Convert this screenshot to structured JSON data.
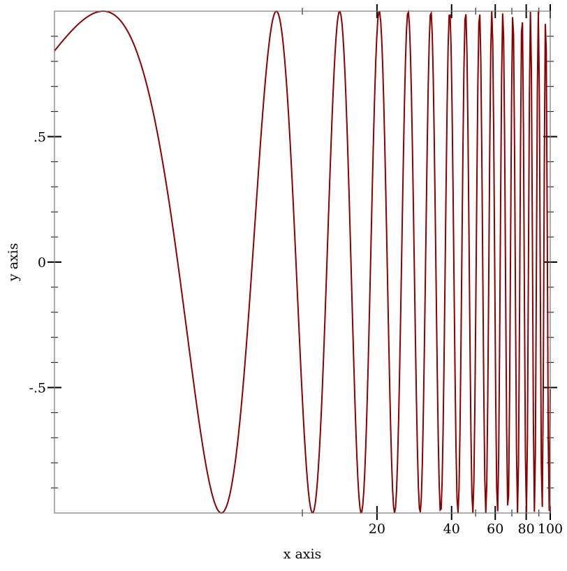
{
  "chart_data": {
    "type": "line",
    "function": "sin(x)",
    "xlabel": "x axis",
    "ylabel": "y axis",
    "xlim": [
      1,
      100
    ],
    "ylim": [
      -1,
      1
    ],
    "x_scale": "log",
    "x_major_ticks": [
      20,
      40,
      60,
      80,
      100
    ],
    "x_tick_labels": [
      "20",
      "40",
      "60",
      "80",
      "100"
    ],
    "x_minor_ticks": [
      10,
      50,
      70,
      90
    ],
    "y_major_ticks": [
      -0.5,
      0,
      0.5
    ],
    "y_tick_labels": [
      "-.5",
      "0",
      ".5"
    ],
    "y_minor_step": 0.1,
    "grid": false,
    "series": [
      {
        "color": "#8b0000",
        "samples": 500
      }
    ]
  }
}
